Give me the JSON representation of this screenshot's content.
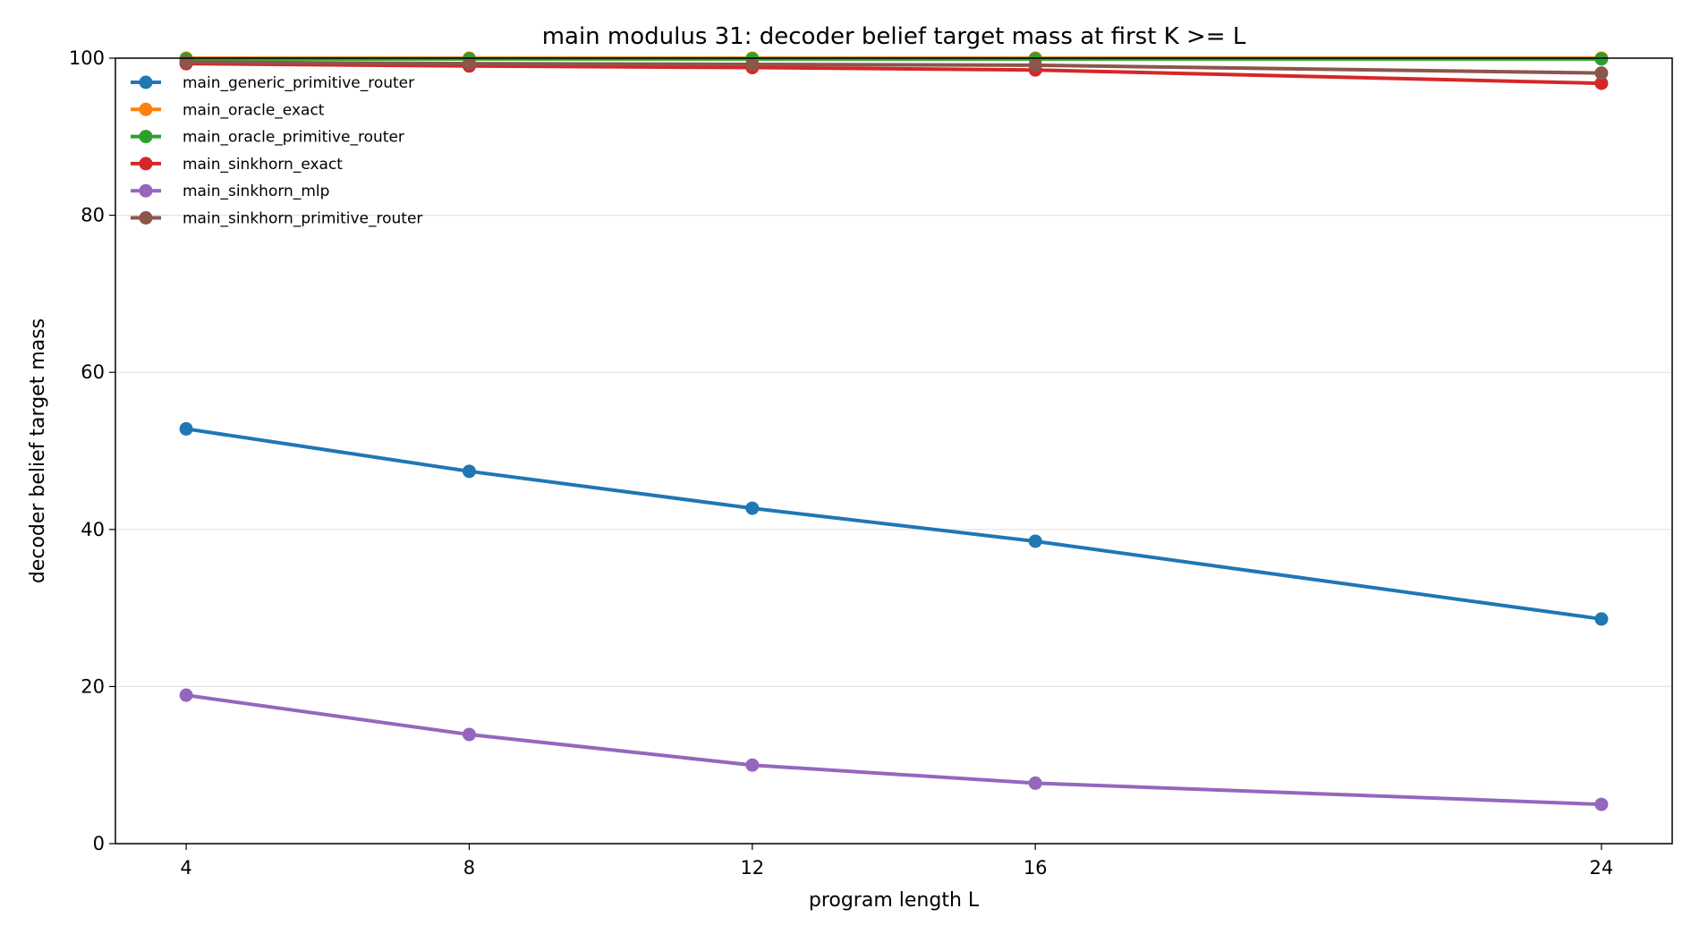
{
  "chart_data": {
    "type": "line",
    "title": "main modulus 31: decoder belief target mass at first K >= L",
    "xlabel": "program length L",
    "ylabel": "decoder belief target mass",
    "x": [
      4,
      8,
      12,
      16,
      24
    ],
    "xticks": [
      4,
      8,
      12,
      16,
      24
    ],
    "xlim": [
      3,
      25
    ],
    "ylim": [
      0,
      100
    ],
    "yticks": [
      0,
      20,
      40,
      60,
      80,
      100
    ],
    "grid": "horizontal",
    "legend_position": "top-left",
    "series": [
      {
        "name": "main_generic_primitive_router",
        "color": "#1f77b4",
        "values": [
          52.8,
          47.4,
          42.7,
          38.5,
          28.6
        ]
      },
      {
        "name": "main_oracle_exact",
        "color": "#ff7f0e",
        "values": [
          100.0,
          100.0,
          100.0,
          100.0,
          100.0
        ]
      },
      {
        "name": "main_oracle_primitive_router",
        "color": "#2ca02c",
        "values": [
          99.9,
          99.9,
          99.9,
          99.9,
          99.9
        ]
      },
      {
        "name": "main_sinkhorn_exact",
        "color": "#d62728",
        "values": [
          99.3,
          99.0,
          98.8,
          98.5,
          96.8
        ]
      },
      {
        "name": "main_sinkhorn_mlp",
        "color": "#9467bd",
        "values": [
          18.9,
          13.9,
          10.0,
          7.7,
          5.0
        ]
      },
      {
        "name": "main_sinkhorn_primitive_router",
        "color": "#8c564b",
        "values": [
          99.5,
          99.3,
          99.2,
          99.1,
          98.1
        ]
      }
    ]
  }
}
